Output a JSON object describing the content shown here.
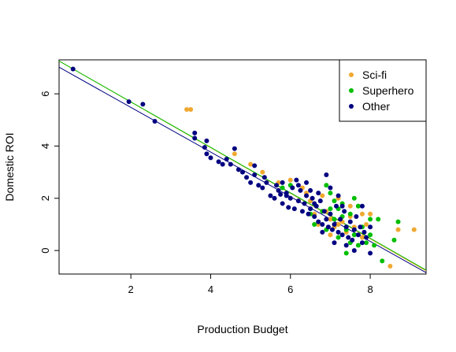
{
  "chart_data": {
    "type": "scatter",
    "title": "",
    "xlabel": "Production Budget",
    "ylabel": "Domestic ROI",
    "xlim": [
      0.2,
      9.4
    ],
    "ylim": [
      -0.9,
      7.3
    ],
    "xticks": [
      2,
      4,
      6,
      8
    ],
    "yticks": [
      0,
      2,
      4,
      6
    ],
    "grid": false,
    "legend_position": "top-right",
    "series": [
      {
        "name": "Sci-fi",
        "color": "#f0a830",
        "points": [
          [
            3.4,
            5.4
          ],
          [
            3.5,
            5.4
          ],
          [
            4.6,
            3.7
          ],
          [
            5.0,
            3.3
          ],
          [
            5.3,
            3.0
          ],
          [
            5.7,
            2.6
          ],
          [
            6.0,
            2.7
          ],
          [
            6.3,
            2.4
          ],
          [
            6.5,
            1.9
          ],
          [
            6.6,
            1.4
          ],
          [
            6.8,
            2.1
          ],
          [
            6.9,
            1.5
          ],
          [
            7.0,
            1.2
          ],
          [
            7.1,
            0.9
          ],
          [
            7.2,
            1.0
          ],
          [
            7.3,
            1.1
          ],
          [
            7.4,
            0.7
          ],
          [
            7.5,
            1.3
          ],
          [
            7.6,
            0.9
          ],
          [
            7.7,
            1.7
          ],
          [
            7.8,
            1.4
          ],
          [
            7.9,
            1.0
          ],
          [
            8.0,
            1.4
          ],
          [
            8.5,
            -0.6
          ],
          [
            8.7,
            0.8
          ],
          [
            9.1,
            0.8
          ],
          [
            6.7,
            1.0
          ],
          [
            7.0,
            0.6
          ],
          [
            7.8,
            0.5
          ],
          [
            7.5,
            1.7
          ],
          [
            6.4,
            2.2
          ],
          [
            7.2,
            2.0
          ]
        ]
      },
      {
        "name": "Superhero",
        "color": "#00bf00",
        "points": [
          [
            6.5,
            1.4
          ],
          [
            6.6,
            1.0
          ],
          [
            6.8,
            1.5
          ],
          [
            6.9,
            0.8
          ],
          [
            7.0,
            1.6
          ],
          [
            7.1,
            1.2
          ],
          [
            7.2,
            0.5
          ],
          [
            7.3,
            1.8
          ],
          [
            7.4,
            0.8
          ],
          [
            7.5,
            1.4
          ],
          [
            7.6,
            2.0
          ],
          [
            7.7,
            1.7
          ],
          [
            7.8,
            0.9
          ],
          [
            7.9,
            0.3
          ],
          [
            8.0,
            0.6
          ],
          [
            8.1,
            0.2
          ],
          [
            8.2,
            1.2
          ],
          [
            8.3,
            -0.4
          ],
          [
            8.6,
            0.4
          ],
          [
            8.7,
            1.1
          ],
          [
            7.4,
            -0.1
          ],
          [
            7.6,
            0.6
          ],
          [
            7.0,
            2.2
          ],
          [
            6.9,
            2.5
          ],
          [
            7.3,
            1.3
          ],
          [
            7.1,
            1.9
          ],
          [
            6.0,
            2.5
          ],
          [
            5.8,
            2.4
          ],
          [
            7.7,
            0.2
          ],
          [
            8.0,
            1.2
          ],
          [
            7.5,
            0.3
          ],
          [
            7.2,
            1.6
          ]
        ]
      },
      {
        "name": "Other",
        "color": "#000080",
        "points": [
          [
            0.55,
            6.95
          ],
          [
            1.95,
            5.7
          ],
          [
            2.3,
            5.6
          ],
          [
            2.6,
            4.95
          ],
          [
            3.6,
            4.5
          ],
          [
            3.6,
            4.3
          ],
          [
            3.9,
            4.2
          ],
          [
            3.85,
            3.95
          ],
          [
            3.9,
            3.7
          ],
          [
            4.0,
            3.55
          ],
          [
            4.2,
            3.4
          ],
          [
            4.3,
            3.3
          ],
          [
            4.4,
            3.5
          ],
          [
            4.5,
            3.3
          ],
          [
            4.6,
            3.9
          ],
          [
            4.7,
            3.1
          ],
          [
            4.8,
            3.0
          ],
          [
            4.9,
            2.8
          ],
          [
            5.0,
            2.6
          ],
          [
            5.1,
            2.9
          ],
          [
            5.1,
            3.25
          ],
          [
            5.2,
            2.5
          ],
          [
            5.3,
            2.4
          ],
          [
            5.35,
            2.8
          ],
          [
            5.4,
            2.6
          ],
          [
            5.5,
            2.1
          ],
          [
            5.6,
            2.0
          ],
          [
            5.65,
            2.5
          ],
          [
            5.7,
            2.3
          ],
          [
            5.75,
            2.15
          ],
          [
            5.8,
            2.6
          ],
          [
            5.8,
            1.8
          ],
          [
            5.9,
            2.1
          ],
          [
            5.95,
            1.65
          ],
          [
            6.0,
            2.0
          ],
          [
            6.05,
            2.4
          ],
          [
            6.1,
            1.6
          ],
          [
            6.15,
            2.7
          ],
          [
            6.2,
            1.9
          ],
          [
            6.25,
            2.3
          ],
          [
            6.3,
            1.5
          ],
          [
            6.35,
            1.8
          ],
          [
            6.4,
            2.1
          ],
          [
            6.45,
            1.4
          ],
          [
            6.5,
            1.6
          ],
          [
            6.55,
            2.0
          ],
          [
            6.6,
            1.3
          ],
          [
            6.65,
            1.7
          ],
          [
            6.7,
            1.1
          ],
          [
            6.75,
            1.9
          ],
          [
            6.8,
            1.0
          ],
          [
            6.85,
            1.5
          ],
          [
            6.9,
            1.2
          ],
          [
            6.95,
            0.9
          ],
          [
            7.0,
            1.4
          ],
          [
            7.05,
            0.8
          ],
          [
            7.1,
            1.0
          ],
          [
            7.15,
            1.7
          ],
          [
            7.2,
            0.7
          ],
          [
            7.25,
            1.2
          ],
          [
            7.3,
            0.6
          ],
          [
            7.35,
            1.5
          ],
          [
            7.4,
            0.9
          ],
          [
            7.45,
            0.5
          ],
          [
            7.5,
            1.1
          ],
          [
            7.55,
            0.4
          ],
          [
            7.6,
            0.8
          ],
          [
            7.65,
            1.3
          ],
          [
            7.7,
            0.6
          ],
          [
            7.75,
            0.9
          ],
          [
            7.8,
            0.3
          ],
          [
            7.85,
            0.7
          ],
          [
            7.9,
            0.5
          ],
          [
            8.0,
            0.9
          ],
          [
            7.0,
            2.4
          ],
          [
            6.7,
            2.2
          ],
          [
            6.4,
            2.6
          ],
          [
            7.2,
            2.1
          ],
          [
            7.3,
            1.7
          ],
          [
            6.6,
            1.8
          ],
          [
            6.2,
            2.5
          ],
          [
            5.9,
            2.2
          ],
          [
            6.8,
            0.7
          ],
          [
            7.1,
            0.3
          ],
          [
            7.4,
            0.2
          ],
          [
            7.6,
            0.0
          ],
          [
            7.8,
            1.7
          ],
          [
            8.0,
            -0.1
          ],
          [
            6.9,
            2.9
          ],
          [
            6.5,
            2.3
          ]
        ]
      }
    ],
    "fit_lines": [
      {
        "series": "Sci-fi",
        "color": "#f0a830",
        "intercept": 7.43,
        "slope": -0.873
      },
      {
        "series": "Superhero",
        "color": "#00bf00",
        "intercept": 7.43,
        "slope": -0.87
      },
      {
        "series": "Other",
        "color": "#000080",
        "intercept": 7.19,
        "slope": -0.855
      }
    ]
  }
}
